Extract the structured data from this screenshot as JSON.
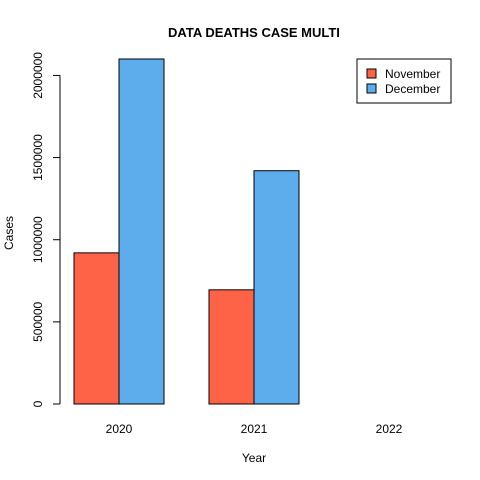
{
  "chart_data": {
    "type": "bar",
    "title": "DATA DEATHS CASE MULTI",
    "xlabel": "Year",
    "ylabel": "Cases",
    "categories": [
      "2020",
      "2021",
      "2022"
    ],
    "series": [
      {
        "name": "November",
        "color": "#FF6347",
        "values": [
          920000,
          695000,
          0
        ]
      },
      {
        "name": "December",
        "color": "#5DADEC",
        "values": [
          2100000,
          1420000,
          0
        ]
      }
    ],
    "ylim": [
      0,
      2100000
    ],
    "yticks": [
      0,
      500000,
      1000000,
      1500000,
      2000000
    ],
    "ytick_labels": [
      "0",
      "500000",
      "1000000",
      "1500000",
      "2000000"
    ],
    "legend_position": "top-right",
    "grid": false
  }
}
